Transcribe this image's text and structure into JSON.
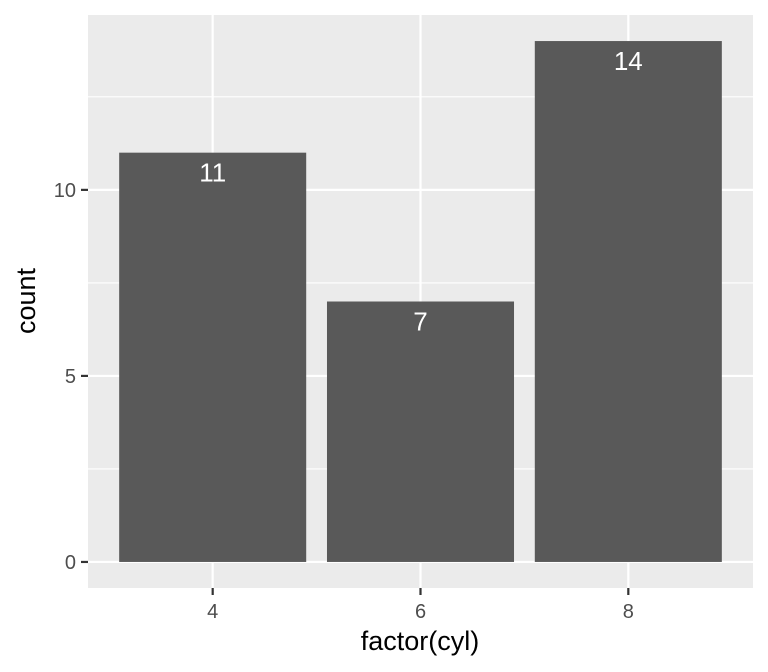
{
  "chart_data": {
    "type": "bar",
    "categories": [
      "4",
      "6",
      "8"
    ],
    "values": [
      11,
      7,
      14
    ],
    "data_labels": [
      "11",
      "7",
      "14"
    ],
    "title": "",
    "xlabel": "factor(cyl)",
    "ylabel": "count",
    "ylim": [
      -0.7,
      14.7
    ],
    "yticks": [
      0,
      5,
      10
    ],
    "ytick_labels": [
      "0",
      "5",
      "10"
    ],
    "grid": true,
    "legend": "none",
    "colors": {
      "bar": "#595959",
      "panel_background": "#ebebeb",
      "grid": "#ffffff",
      "data_label": "#ffffff"
    }
  }
}
